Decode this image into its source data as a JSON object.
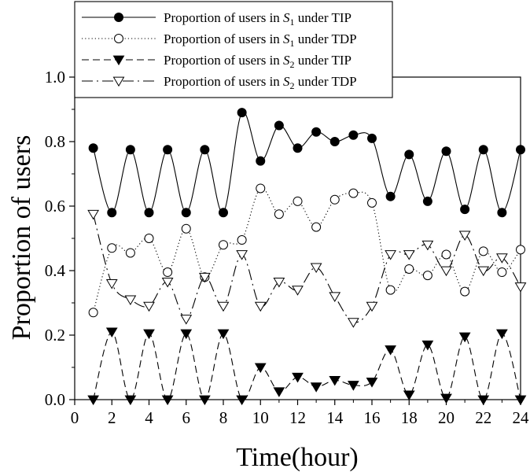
{
  "chart_data": {
    "type": "line",
    "title": "",
    "xlabel": "Time(hour)",
    "ylabel": "Proportion of users",
    "xlim": [
      0,
      24
    ],
    "ylim": [
      0,
      1.0
    ],
    "xticks": [
      "0",
      "2",
      "4",
      "6",
      "8",
      "10",
      "12",
      "14",
      "16",
      "18",
      "20",
      "22",
      "24"
    ],
    "yticks": [
      "0.0",
      "0.2",
      "0.4",
      "0.6",
      "0.8",
      "1.0"
    ],
    "grid": false,
    "legend_position": "top-left",
    "x": [
      1,
      2,
      3,
      4,
      5,
      6,
      7,
      8,
      9,
      10,
      11,
      12,
      13,
      14,
      15,
      16,
      17,
      18,
      19,
      20,
      21,
      22,
      23,
      24
    ],
    "series": [
      {
        "name": "Proportion of users in S1 under TIP",
        "name_parts": [
          "Proportion of users in ",
          "S",
          "1",
          " under TIP"
        ],
        "line_style": "solid",
        "marker": "filled-circle",
        "values": [
          0.78,
          0.58,
          0.775,
          0.58,
          0.775,
          0.58,
          0.775,
          0.58,
          0.89,
          0.74,
          0.85,
          0.78,
          0.83,
          0.8,
          0.82,
          0.81,
          0.63,
          0.76,
          0.615,
          0.77,
          0.59,
          0.775,
          0.58,
          0.775
        ]
      },
      {
        "name": "Proportion of users in S1 under TDP",
        "name_parts": [
          "Proportion of users in ",
          "S",
          "1",
          " under TDP"
        ],
        "line_style": "dotted",
        "marker": "open-circle",
        "values": [
          0.27,
          0.47,
          0.455,
          0.5,
          0.395,
          0.53,
          0.38,
          0.48,
          0.495,
          0.655,
          0.575,
          0.615,
          0.535,
          0.62,
          0.64,
          0.61,
          0.34,
          0.405,
          0.385,
          0.45,
          0.335,
          0.46,
          0.395,
          0.465
        ]
      },
      {
        "name": "Proportion of users in S2 under TIP",
        "name_parts": [
          "Proportion of users in ",
          "S",
          "2",
          " under TIP"
        ],
        "line_style": "dashed",
        "marker": "filled-triangle-down",
        "values": [
          0.0,
          0.21,
          0.0,
          0.205,
          0.0,
          0.205,
          0.0,
          0.205,
          0.0,
          0.1,
          0.025,
          0.07,
          0.04,
          0.06,
          0.045,
          0.055,
          0.155,
          0.015,
          0.17,
          0.005,
          0.195,
          0.0,
          0.205,
          0.0
        ]
      },
      {
        "name": "Proportion of users in S2 under TDP",
        "name_parts": [
          "Proportion of users in ",
          "S",
          "2",
          " under TDP"
        ],
        "line_style": "dash-dot",
        "marker": "open-triangle-down",
        "values": [
          0.575,
          0.36,
          0.31,
          0.29,
          0.365,
          0.25,
          0.38,
          0.29,
          0.45,
          0.29,
          0.365,
          0.34,
          0.41,
          0.32,
          0.24,
          0.29,
          0.45,
          0.45,
          0.48,
          0.4,
          0.51,
          0.4,
          0.44,
          0.35
        ]
      }
    ]
  }
}
